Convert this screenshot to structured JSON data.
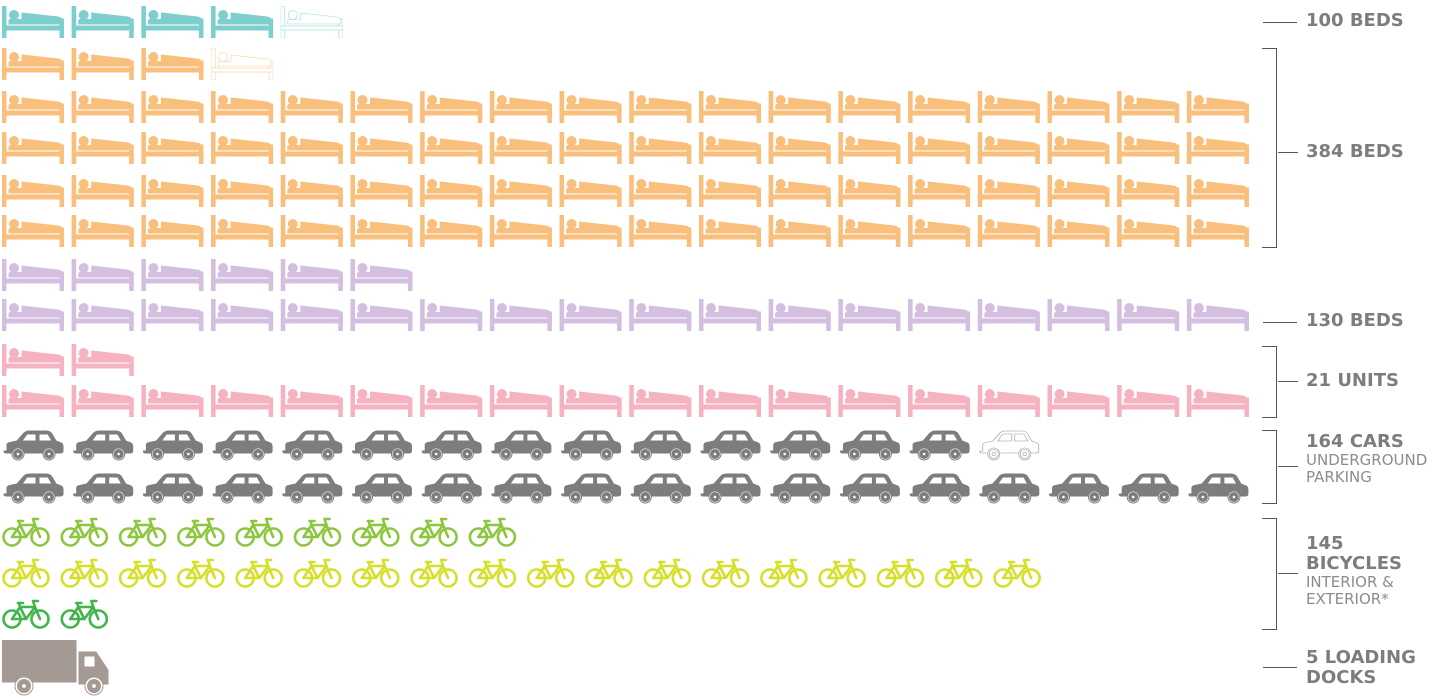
{
  "chart_data": {
    "type": "pictograph",
    "colors": {
      "bed_teal": "#7ccfcc",
      "bed_orange": "#f9bf7d",
      "bed_purple": "#d4bfe0",
      "bed_pink": "#f5b3c1",
      "car": "#7d7d7d",
      "bike_green": "#8dc63f",
      "bike_yellow": "#d6e02a",
      "bike_darkgreen": "#3fb54a",
      "truck": "#a59a93"
    },
    "rows": [
      {
        "icon": "bed-icon",
        "color": "bed_teal",
        "count": 4.6,
        "group": "g100"
      },
      {
        "icon": "bed-icon",
        "color": "bed_orange",
        "count": 3.9,
        "group": "g384"
      },
      {
        "icon": "bed-icon",
        "color": "bed_orange",
        "count": 18,
        "group": "g384"
      },
      {
        "icon": "bed-icon",
        "color": "bed_orange",
        "count": 18,
        "group": "g384"
      },
      {
        "icon": "bed-icon",
        "color": "bed_orange",
        "count": 18,
        "group": "g384"
      },
      {
        "icon": "bed-icon",
        "color": "bed_orange",
        "count": 18,
        "group": "g384"
      },
      {
        "icon": "bed-icon",
        "color": "bed_purple",
        "count": 6,
        "group": "g130"
      },
      {
        "icon": "bed-icon",
        "color": "bed_purple",
        "count": 18,
        "group": "g130"
      },
      {
        "icon": "bed-icon",
        "color": "bed_pink",
        "count": 2,
        "group": "g21"
      },
      {
        "icon": "bed-icon",
        "color": "bed_pink",
        "count": 18,
        "group": "g21"
      },
      {
        "icon": "car-icon",
        "color": "car",
        "count": 14.8,
        "group": "g164"
      },
      {
        "icon": "car-icon",
        "color": "car",
        "count": 18,
        "group": "g164"
      },
      {
        "icon": "bike-icon",
        "color": "bike_green",
        "count": 9,
        "group": "g145"
      },
      {
        "icon": "bike-icon",
        "color": "bike_yellow",
        "count": 18,
        "group": "g145"
      },
      {
        "icon": "bike-icon",
        "color": "bike_darkgreen",
        "count": 2,
        "group": "g145"
      },
      {
        "icon": "truck-icon",
        "color": "truck",
        "count": 1,
        "group": "g5"
      }
    ],
    "legend": {
      "g100": {
        "main": "100 BEDS",
        "sub": ""
      },
      "g384": {
        "main": "384 BEDS",
        "sub": ""
      },
      "g130": {
        "main": "130 BEDS",
        "sub": ""
      },
      "g21": {
        "main": "21 UNITS",
        "sub": ""
      },
      "g164": {
        "main": "164 CARS",
        "sub": "UNDERGROUND PARKING"
      },
      "g145": {
        "main": "145 BICYCLES",
        "sub": "INTERIOR & EXTERIOR*"
      },
      "g5": {
        "main": "5 LOADING DOCKS",
        "sub": ""
      }
    }
  }
}
